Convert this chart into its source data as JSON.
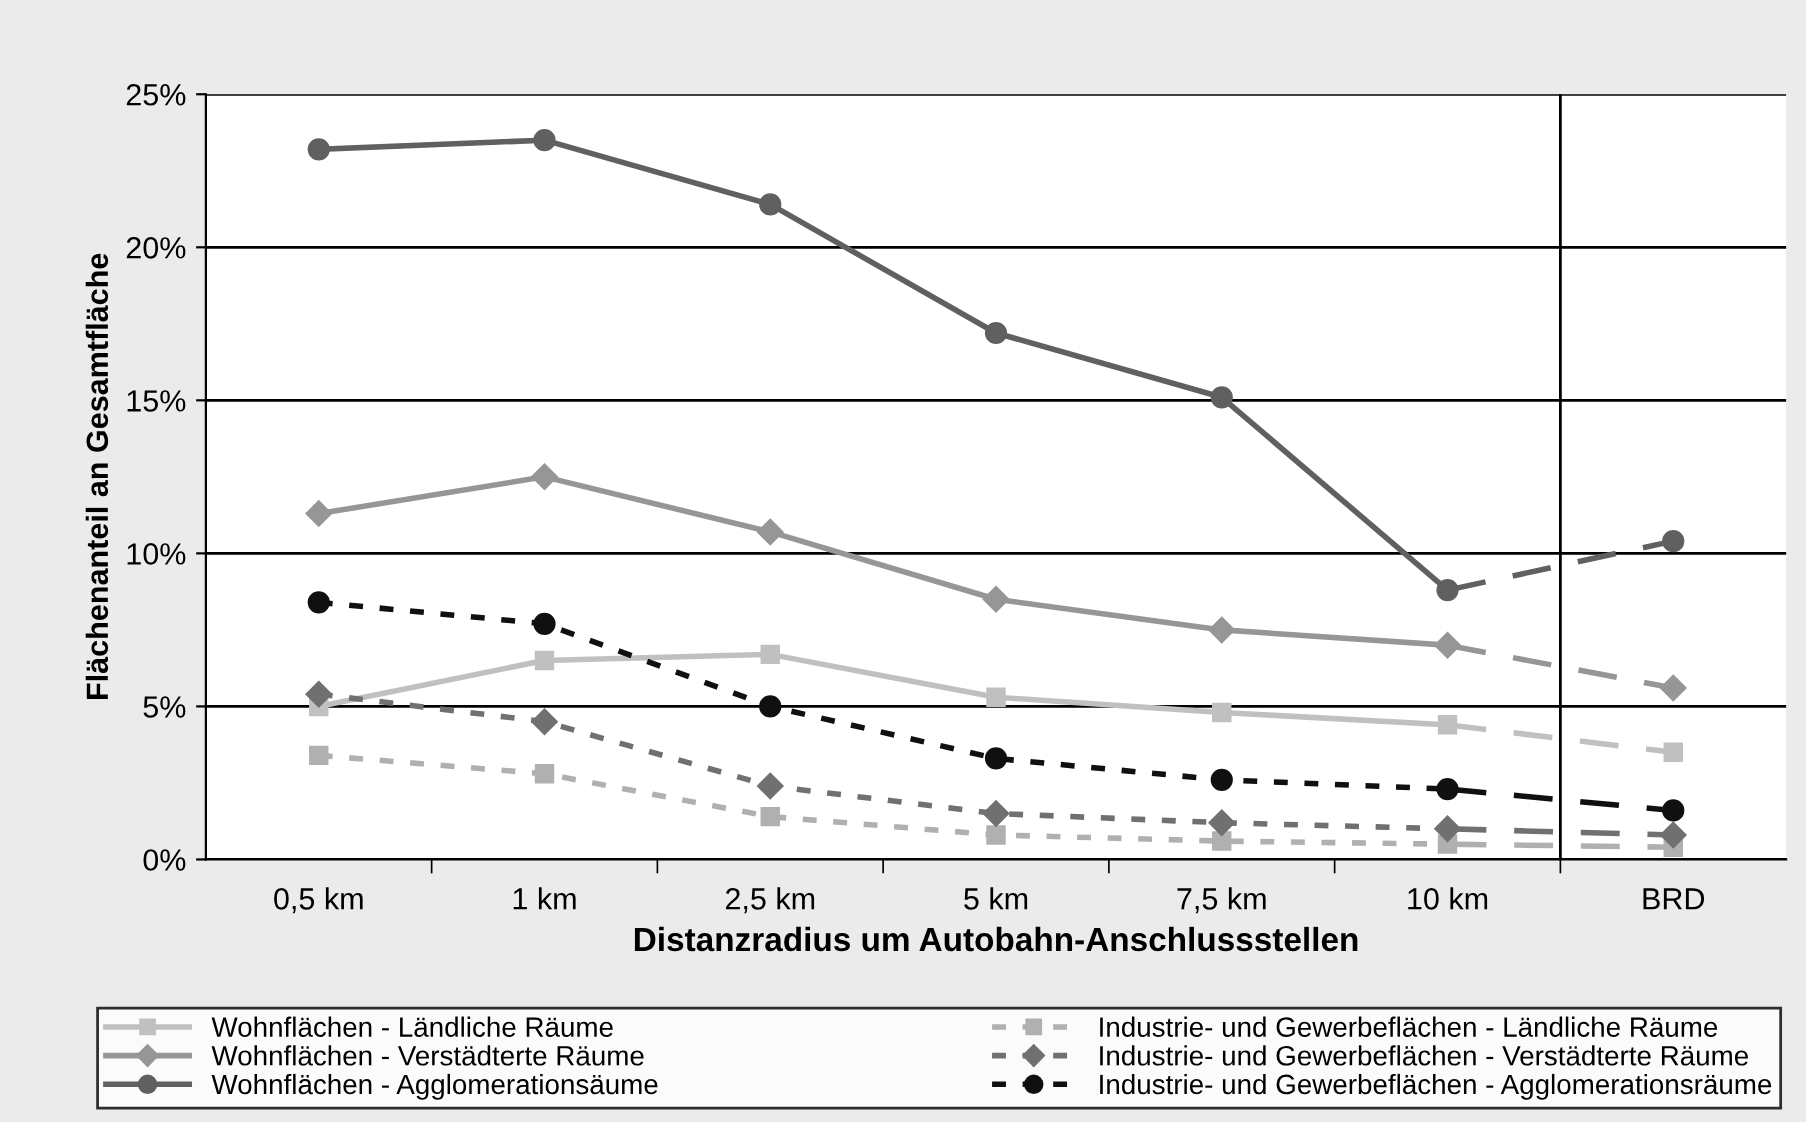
{
  "chart_data": {
    "type": "line",
    "xlabel": "Distanzradius um Autobahn-Anschlussstellen",
    "ylabel": "Flächenanteil an Gesamtfläche",
    "categories": [
      "0,5 km",
      "1 km",
      "2,5 km",
      "5 km",
      "7,5 km",
      "10 km",
      "BRD"
    ],
    "ylim": [
      0,
      25
    ],
    "yticks": [
      {
        "value": 0,
        "label": "0%"
      },
      {
        "value": 5,
        "label": "5%"
      },
      {
        "value": 10,
        "label": "10%"
      },
      {
        "value": 15,
        "label": "15%"
      },
      {
        "value": 20,
        "label": "20%"
      },
      {
        "value": 25,
        "label": "25%"
      }
    ],
    "grid": "y",
    "legend": "bottom",
    "series": [
      {
        "name": "Wohnflächen - Ländliche Räume",
        "color": "#c0c0c0",
        "marker": "square",
        "line_style": "solid",
        "values": [
          5.0,
          6.5,
          6.7,
          5.3,
          4.8,
          4.4,
          3.5
        ]
      },
      {
        "name": "Wohnflächen - Verstädterte Räume",
        "color": "#969696",
        "marker": "diamond",
        "line_style": "solid",
        "values": [
          11.3,
          12.5,
          10.7,
          8.5,
          7.5,
          7.0,
          5.6
        ]
      },
      {
        "name": "Wohnflächen - Agglomerationsäume",
        "color": "#606060",
        "marker": "circle",
        "line_style": "solid",
        "values": [
          23.2,
          23.5,
          21.4,
          17.2,
          15.1,
          8.8,
          10.4
        ]
      },
      {
        "name": "Industrie- und Gewerbeflächen - Ländliche Räume",
        "color": "#b0b0b0",
        "marker": "square",
        "line_style": "dashed",
        "values": [
          3.4,
          2.8,
          1.4,
          0.8,
          0.6,
          0.5,
          0.4
        ]
      },
      {
        "name": "Industrie- und Gewerbeflächen - Verstädterte Räume",
        "color": "#707070",
        "marker": "diamond",
        "line_style": "dashed",
        "values": [
          5.4,
          4.5,
          2.4,
          1.5,
          1.2,
          1.0,
          0.8
        ]
      },
      {
        "name": "Industrie- und Gewerbeflächen - Agglomerationsräume",
        "color": "#101010",
        "marker": "circle",
        "line_style": "dashed",
        "values": [
          8.4,
          7.7,
          5.0,
          3.3,
          2.6,
          2.3,
          1.6
        ]
      }
    ]
  }
}
